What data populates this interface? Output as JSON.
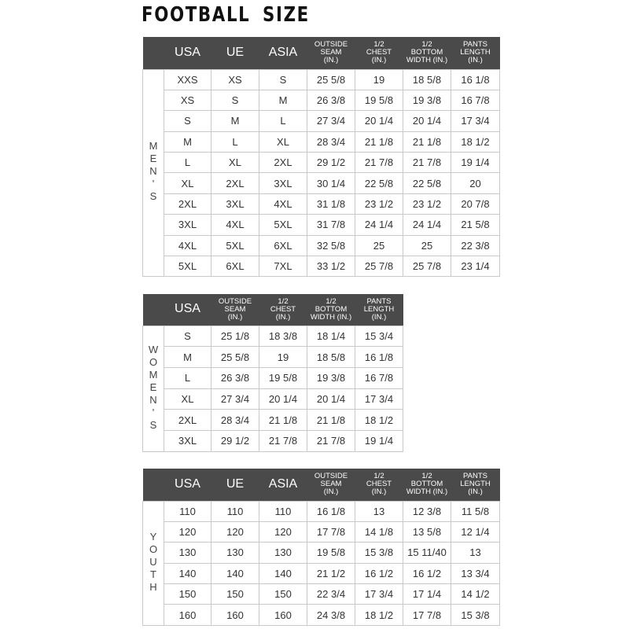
{
  "title": "FOOTBALL SIZE",
  "header_color": "#4a4a4a",
  "tables": [
    {
      "group": "MEN'S",
      "columns": [
        "USA",
        "UE",
        "ASIA",
        "OUTSIDE\nSEAM\n(IN.)",
        "1/2\nCHEST\n(IN.)",
        "1/2\nBOTTOM\nWIDTH  (IN.)",
        "PANTS\nLENGTH\n(IN.)"
      ],
      "rows": [
        [
          "XXS",
          "XS",
          "S",
          "25 5/8",
          "19",
          "18 5/8",
          "16 1/8"
        ],
        [
          "XS",
          "S",
          "M",
          "26 3/8",
          "19 5/8",
          "19 3/8",
          "16 7/8"
        ],
        [
          "S",
          "M",
          "L",
          "27 3/4",
          "20 1/4",
          "20 1/4",
          "17 3/4"
        ],
        [
          "M",
          "L",
          "XL",
          "28 3/4",
          "21 1/8",
          "21 1/8",
          "18 1/2"
        ],
        [
          "L",
          "XL",
          "2XL",
          "29 1/2",
          "21 7/8",
          "21 7/8",
          "19 1/4"
        ],
        [
          "XL",
          "2XL",
          "3XL",
          "30 1/4",
          "22 5/8",
          "22 5/8",
          "20"
        ],
        [
          "2XL",
          "3XL",
          "4XL",
          "31 1/8",
          "23 1/2",
          "23 1/2",
          "20 7/8"
        ],
        [
          "3XL",
          "4XL",
          "5XL",
          "31 7/8",
          "24 1/4",
          "24 1/4",
          "21 5/8"
        ],
        [
          "4XL",
          "5XL",
          "6XL",
          "32 5/8",
          "25",
          "25",
          "22 3/8"
        ],
        [
          "5XL",
          "6XL",
          "7XL",
          "33 1/2",
          "25 7/8",
          "25 7/8",
          "23 1/4"
        ]
      ]
    },
    {
      "group": "WOMEN'S",
      "columns": [
        "USA",
        "OUTSIDE\nSEAM\n(IN.)",
        "1/2\nCHEST\n(IN.)",
        "1/2\nBOTTOM\nWIDTH  (IN.)",
        "PANTS\nLENGTH\n(IN.)"
      ],
      "rows": [
        [
          "S",
          "25 1/8",
          "18 3/8",
          "18 1/4",
          "15 3/4"
        ],
        [
          "M",
          "25 5/8",
          "19",
          "18 5/8",
          "16 1/8"
        ],
        [
          "L",
          "26 3/8",
          "19 5/8",
          "19 3/8",
          "16 7/8"
        ],
        [
          "XL",
          "27 3/4",
          "20 1/4",
          "20 1/4",
          "17 3/4"
        ],
        [
          "2XL",
          "28 3/4",
          "21 1/8",
          "21 1/8",
          "18 1/2"
        ],
        [
          "3XL",
          "29 1/2",
          "21 7/8",
          "21 7/8",
          "19 1/4"
        ]
      ]
    },
    {
      "group": "YOUTH",
      "columns": [
        "USA",
        "UE",
        "ASIA",
        "OUTSIDE\nSEAM\n(IN.)",
        "1/2\nCHEST\n(IN.)",
        "1/2\nBOTTOM\nWIDTH  (IN.)",
        "PANTS\nLENGTH\n(IN.)"
      ],
      "rows": [
        [
          "110",
          "110",
          "110",
          "16 1/8",
          "13",
          "12 3/8",
          "11 5/8"
        ],
        [
          "120",
          "120",
          "120",
          "17 7/8",
          "14 1/8",
          "13 5/8",
          "12 1/4"
        ],
        [
          "130",
          "130",
          "130",
          "19 5/8",
          "15 3/8",
          "15 11/40",
          "13"
        ],
        [
          "140",
          "140",
          "140",
          "21 1/2",
          "16 1/2",
          "16 1/2",
          "13 3/4"
        ],
        [
          "150",
          "150",
          "150",
          "22 3/4",
          "17 3/4",
          "17 1/4",
          "14 1/2"
        ],
        [
          "160",
          "160",
          "160",
          "24 3/8",
          "18 1/2",
          "17 7/8",
          "15 3/8"
        ]
      ]
    }
  ]
}
